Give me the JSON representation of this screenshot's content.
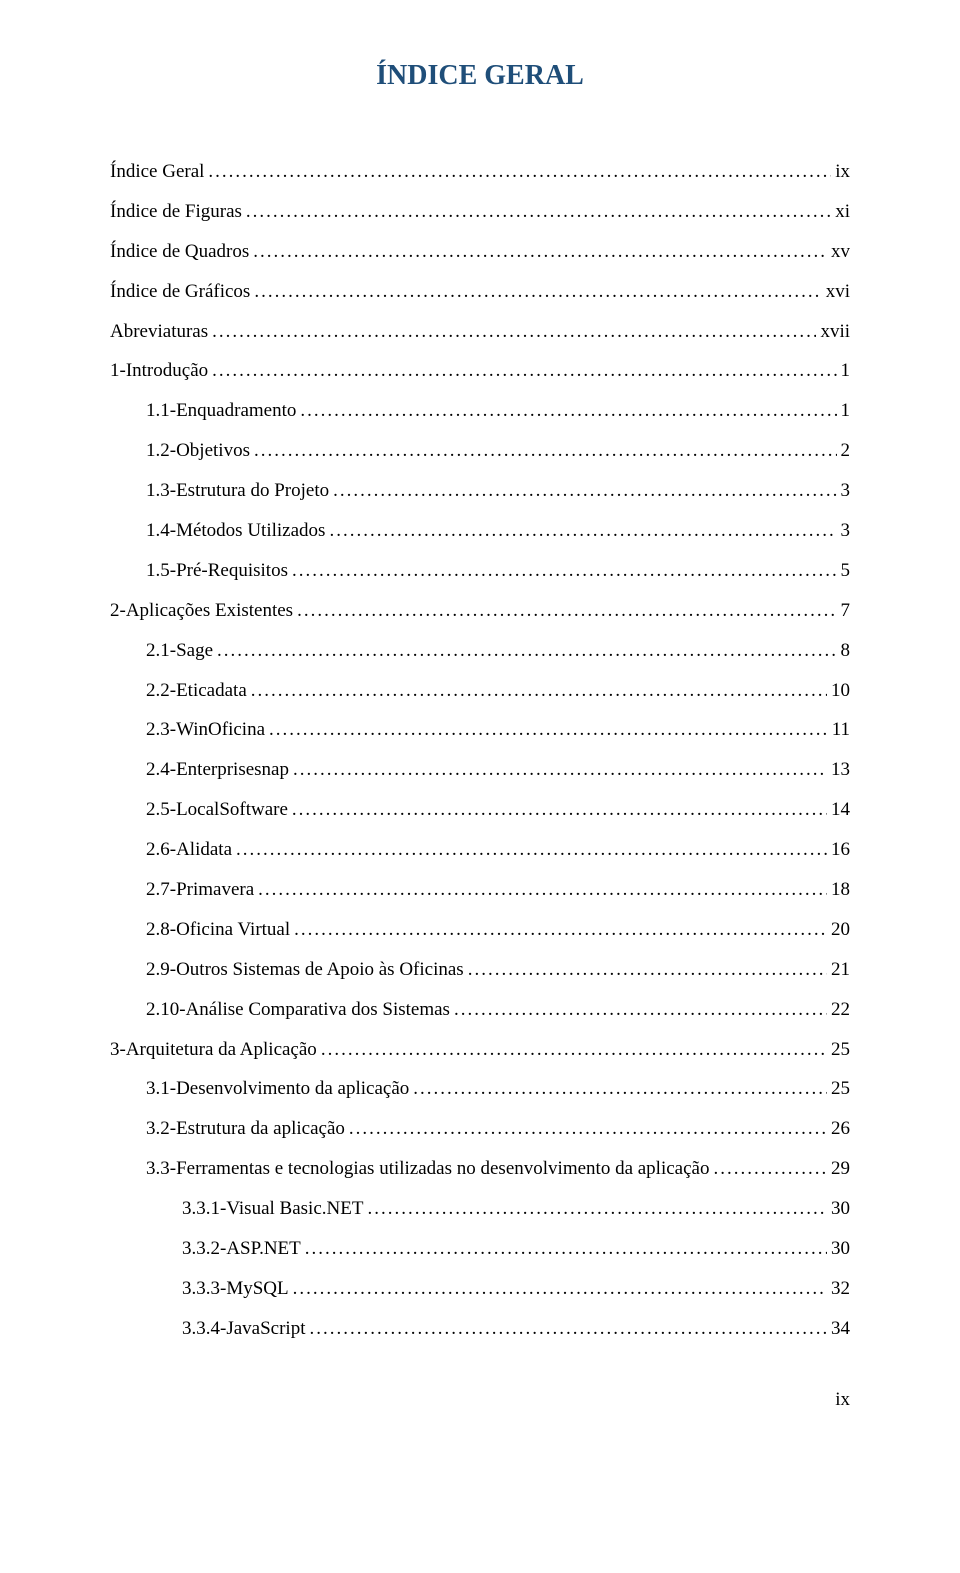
{
  "title": "ÍNDICE GERAL",
  "title_color": "#1f4e79",
  "text_color": "#000000",
  "background_color": "#ffffff",
  "font_family": "Times New Roman",
  "entries": [
    {
      "label": "Índice Geral",
      "page": "ix",
      "indent": 0
    },
    {
      "label": "Índice de Figuras",
      "page": "xi",
      "indent": 0
    },
    {
      "label": "Índice de Quadros",
      "page": "xv",
      "indent": 0
    },
    {
      "label": "Índice de Gráficos",
      "page": "xvi",
      "indent": 0
    },
    {
      "label": "Abreviaturas",
      "page": "xvii",
      "indent": 0
    },
    {
      "label": "1-Introdução",
      "page": "1",
      "indent": 0
    },
    {
      "label": "1.1-Enquadramento",
      "page": "1",
      "indent": 1
    },
    {
      "label": "1.2-Objetivos",
      "page": "2",
      "indent": 1
    },
    {
      "label": "1.3-Estrutura do Projeto",
      "page": "3",
      "indent": 1
    },
    {
      "label": "1.4-Métodos Utilizados",
      "page": "3",
      "indent": 1
    },
    {
      "label": "1.5-Pré-Requisitos",
      "page": "5",
      "indent": 1
    },
    {
      "label": "2-Aplicações Existentes",
      "page": "7",
      "indent": 0
    },
    {
      "label": "2.1-Sage",
      "page": "8",
      "indent": 1
    },
    {
      "label": "2.2-Eticadata",
      "page": "10",
      "indent": 1
    },
    {
      "label": "2.3-WinOficina",
      "page": "11",
      "indent": 1
    },
    {
      "label": "2.4-Enterprisesnap",
      "page": "13",
      "indent": 1
    },
    {
      "label": "2.5-LocalSoftware",
      "page": "14",
      "indent": 1
    },
    {
      "label": "2.6-Alidata",
      "page": "16",
      "indent": 1
    },
    {
      "label": "2.7-Primavera",
      "page": "18",
      "indent": 1
    },
    {
      "label": "2.8-Oficina Virtual",
      "page": "20",
      "indent": 1
    },
    {
      "label": "2.9-Outros Sistemas de Apoio às Oficinas",
      "page": "21",
      "indent": 1
    },
    {
      "label": "2.10-Análise Comparativa dos Sistemas",
      "page": "22",
      "indent": 1
    },
    {
      "label": "3-Arquitetura da Aplicação",
      "page": "25",
      "indent": 0
    },
    {
      "label": "3.1-Desenvolvimento da aplicação",
      "page": "25",
      "indent": 1
    },
    {
      "label": "3.2-Estrutura da aplicação",
      "page": "26",
      "indent": 1
    },
    {
      "label": "3.3-Ferramentas e tecnologias utilizadas no desenvolvimento da aplicação",
      "page": "29",
      "indent": 1
    },
    {
      "label": "3.3.1-Visual Basic.NET",
      "page": "30",
      "indent": 2
    },
    {
      "label": "3.3.2-ASP.NET",
      "page": "30",
      "indent": 2
    },
    {
      "label": "3.3.3-MySQL",
      "page": "32",
      "indent": 2
    },
    {
      "label": "3.3.4-JavaScript",
      "page": "34",
      "indent": 2
    }
  ],
  "page_number": "ix"
}
